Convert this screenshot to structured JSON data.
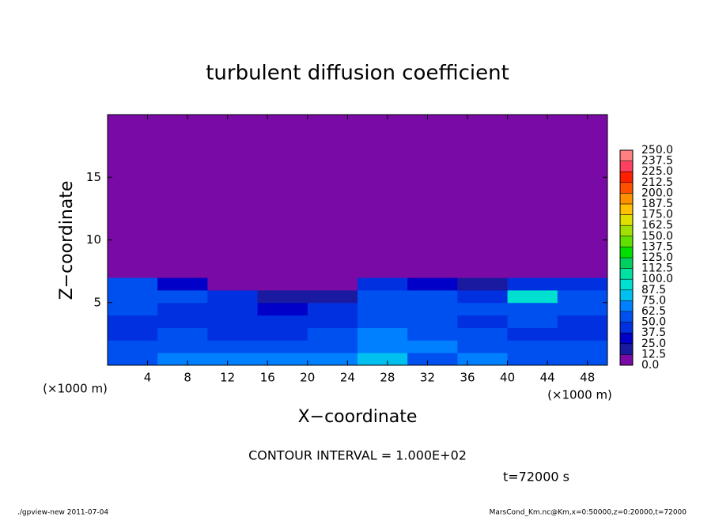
{
  "chart_data": {
    "type": "heatmap",
    "title": "turbulent diffusion coefficient",
    "x_label": "X−coordinate",
    "y_label": "Z−coordinate",
    "x_unit_label": "(×1000 m)",
    "annotation": "CONTOUR INTERVAL = 1.000E+02",
    "time_label": "t=72000 s",
    "footer_left": "./gpview-new  2011-07-04",
    "footer_right": "MarsCond_Km.nc@Km,x=0:50000,z=0:20000,t=72000",
    "xlim": [
      0,
      50
    ],
    "ylim": [
      0,
      20
    ],
    "xticks": [
      4,
      8,
      12,
      16,
      20,
      24,
      28,
      32,
      36,
      40,
      44,
      48
    ],
    "yticks": [
      5,
      10,
      15
    ],
    "x_edges": [
      0,
      5,
      10,
      15,
      20,
      25,
      30,
      35,
      40,
      45,
      50
    ],
    "z_edges": [
      0,
      1,
      2,
      3,
      4,
      5,
      6,
      7,
      20
    ],
    "values": [
      [
        60,
        70,
        70,
        65,
        70,
        75,
        60,
        65,
        60,
        55
      ],
      [
        50,
        55,
        55,
        50,
        55,
        70,
        65,
        55,
        50,
        50
      ],
      [
        45,
        50,
        40,
        45,
        50,
        65,
        60,
        50,
        45,
        45
      ],
      [
        45,
        45,
        40,
        40,
        45,
        60,
        60,
        45,
        50,
        45
      ],
      [
        50,
        45,
        45,
        35,
        40,
        55,
        55,
        50,
        60,
        50
      ],
      [
        55,
        50,
        40,
        20,
        20,
        50,
        55,
        45,
        90,
        50
      ],
      [
        50,
        30,
        10,
        5,
        5,
        40,
        30,
        20,
        40,
        45
      ],
      [
        0,
        0,
        0,
        0,
        0,
        0,
        0,
        0,
        0,
        0
      ]
    ],
    "colorbar_ticks": [
      {
        "value": 0,
        "label": "0.0"
      },
      {
        "value": 12.5,
        "label": "12.5"
      },
      {
        "value": 25,
        "label": "25.0"
      },
      {
        "value": 37.5,
        "label": "37.5"
      },
      {
        "value": 50,
        "label": "50.0"
      },
      {
        "value": 62.5,
        "label": "62.5"
      },
      {
        "value": 75,
        "label": "75.0"
      },
      {
        "value": 87.5,
        "label": "87.5"
      },
      {
        "value": 100,
        "label": "100.0"
      },
      {
        "value": 112.5,
        "label": "112.5"
      },
      {
        "value": 125,
        "label": "125.0"
      },
      {
        "value": 137.5,
        "label": "137.5"
      },
      {
        "value": 150,
        "label": "150.0"
      },
      {
        "value": 162.5,
        "label": "162.5"
      },
      {
        "value": 175,
        "label": "175.0"
      },
      {
        "value": 187.5,
        "label": "187.5"
      },
      {
        "value": 200,
        "label": "200.0"
      },
      {
        "value": 212.5,
        "label": "212.5"
      },
      {
        "value": 225,
        "label": "225.0"
      },
      {
        "value": 237.5,
        "label": "237.5"
      },
      {
        "value": 250,
        "label": "250.0"
      }
    ],
    "colors": [
      "#7a0aa5",
      "#1a1aa0",
      "#0000c8",
      "#0030e0",
      "#0050f0",
      "#0080ff",
      "#00c0f0",
      "#00e0d0",
      "#00e0a0",
      "#00d060",
      "#00e000",
      "#60e000",
      "#a0e000",
      "#e0e000",
      "#ffc000",
      "#ff9000",
      "#ff5000",
      "#ff2000",
      "#ff4060",
      "#ff8080"
    ]
  }
}
